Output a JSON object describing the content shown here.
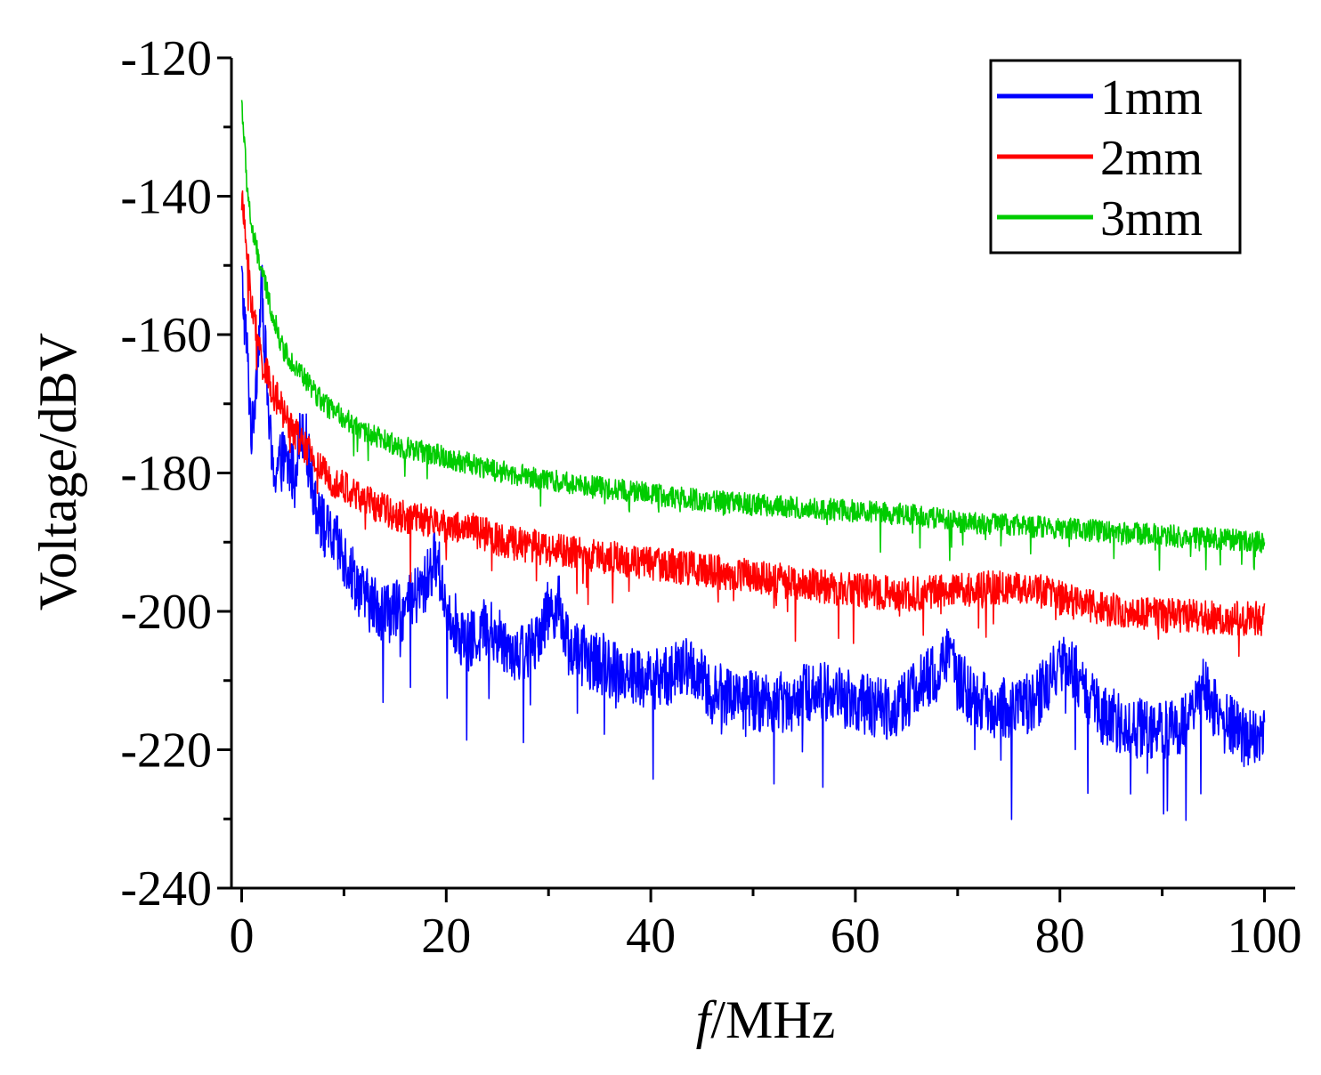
{
  "chart_data": {
    "type": "line",
    "xlabel_italic": "f",
    "xlabel_rest": "/MHz",
    "ylabel": "Voltage/dBV",
    "xlim": [
      -1,
      103
    ],
    "ylim": [
      -240,
      -120
    ],
    "xticks": [
      0,
      20,
      40,
      60,
      80,
      100
    ],
    "xtick_labels": [
      "0",
      "20",
      "40",
      "60",
      "80",
      "100"
    ],
    "yticks": [
      -120,
      -140,
      -160,
      -180,
      -200,
      -220,
      -240
    ],
    "ytick_labels": [
      "-120",
      "-140",
      "-160",
      "-180",
      "-200",
      "-220",
      "-240"
    ],
    "grid": false,
    "legend_position": "top-right",
    "series": [
      {
        "name": "1mm",
        "color": "#0000ff",
        "noise": 4.5,
        "points": [
          [
            0,
            -152
          ],
          [
            0.5,
            -162
          ],
          [
            1,
            -175
          ],
          [
            2,
            -153
          ],
          [
            2.5,
            -168
          ],
          [
            3,
            -180
          ],
          [
            4,
            -178
          ],
          [
            5,
            -180
          ],
          [
            6,
            -173
          ],
          [
            7,
            -182
          ],
          [
            8,
            -188
          ],
          [
            9,
            -190
          ],
          [
            10,
            -192
          ],
          [
            12,
            -198
          ],
          [
            14,
            -200
          ],
          [
            16,
            -200
          ],
          [
            17,
            -198
          ],
          [
            18,
            -196
          ],
          [
            19,
            -192
          ],
          [
            20,
            -199
          ],
          [
            22,
            -205
          ],
          [
            24,
            -202
          ],
          [
            26,
            -205
          ],
          [
            28,
            -206
          ],
          [
            30,
            -200
          ],
          [
            31,
            -199
          ],
          [
            32,
            -205
          ],
          [
            34,
            -207
          ],
          [
            36,
            -208
          ],
          [
            38,
            -209
          ],
          [
            40,
            -210
          ],
          [
            42,
            -209
          ],
          [
            44,
            -208
          ],
          [
            46,
            -212
          ],
          [
            48,
            -212
          ],
          [
            50,
            -213
          ],
          [
            52,
            -213
          ],
          [
            54,
            -213
          ],
          [
            56,
            -211
          ],
          [
            58,
            -212
          ],
          [
            60,
            -213
          ],
          [
            62,
            -214
          ],
          [
            64,
            -214
          ],
          [
            66,
            -211
          ],
          [
            68,
            -209
          ],
          [
            69,
            -206
          ],
          [
            70,
            -210
          ],
          [
            72,
            -213
          ],
          [
            74,
            -214
          ],
          [
            76,
            -214
          ],
          [
            78,
            -212
          ],
          [
            80,
            -208
          ],
          [
            81,
            -207
          ],
          [
            82,
            -211
          ],
          [
            84,
            -215
          ],
          [
            86,
            -216
          ],
          [
            88,
            -217
          ],
          [
            90,
            -217
          ],
          [
            92,
            -216
          ],
          [
            93,
            -213
          ],
          [
            94,
            -211
          ],
          [
            96,
            -216
          ],
          [
            98,
            -218
          ],
          [
            100,
            -218
          ]
        ]
      },
      {
        "name": "2mm",
        "color": "#ff0000",
        "noise": 2.5,
        "points": [
          [
            0,
            -140
          ],
          [
            0.5,
            -148
          ],
          [
            1,
            -156
          ],
          [
            2,
            -164
          ],
          [
            3,
            -168
          ],
          [
            4,
            -171
          ],
          [
            6,
            -176
          ],
          [
            8,
            -180
          ],
          [
            10,
            -182
          ],
          [
            12,
            -184
          ],
          [
            15,
            -186
          ],
          [
            18,
            -187
          ],
          [
            22,
            -188
          ],
          [
            26,
            -190
          ],
          [
            30,
            -191
          ],
          [
            35,
            -192
          ],
          [
            40,
            -193
          ],
          [
            45,
            -194
          ],
          [
            50,
            -195
          ],
          [
            55,
            -196
          ],
          [
            60,
            -197
          ],
          [
            65,
            -197.5
          ],
          [
            70,
            -197
          ],
          [
            74,
            -196.5
          ],
          [
            78,
            -197
          ],
          [
            82,
            -199
          ],
          [
            86,
            -200
          ],
          [
            90,
            -200.5
          ],
          [
            95,
            -201
          ],
          [
            100,
            -201
          ]
        ]
      },
      {
        "name": "3mm",
        "color": "#00cc00",
        "noise": 1.6,
        "points": [
          [
            0,
            -126
          ],
          [
            0.5,
            -138
          ],
          [
            1,
            -145
          ],
          [
            2,
            -151
          ],
          [
            3,
            -157
          ],
          [
            4,
            -162
          ],
          [
            6,
            -166
          ],
          [
            8,
            -170
          ],
          [
            10,
            -172
          ],
          [
            12,
            -174
          ],
          [
            15,
            -176
          ],
          [
            18,
            -177
          ],
          [
            22,
            -178.5
          ],
          [
            26,
            -180
          ],
          [
            30,
            -181
          ],
          [
            35,
            -182
          ],
          [
            40,
            -183
          ],
          [
            45,
            -184
          ],
          [
            50,
            -184.5
          ],
          [
            55,
            -185
          ],
          [
            60,
            -185.5
          ],
          [
            65,
            -186
          ],
          [
            70,
            -187
          ],
          [
            75,
            -187.5
          ],
          [
            80,
            -188
          ],
          [
            85,
            -188.5
          ],
          [
            90,
            -189
          ],
          [
            95,
            -189.5
          ],
          [
            100,
            -190
          ]
        ]
      }
    ]
  }
}
